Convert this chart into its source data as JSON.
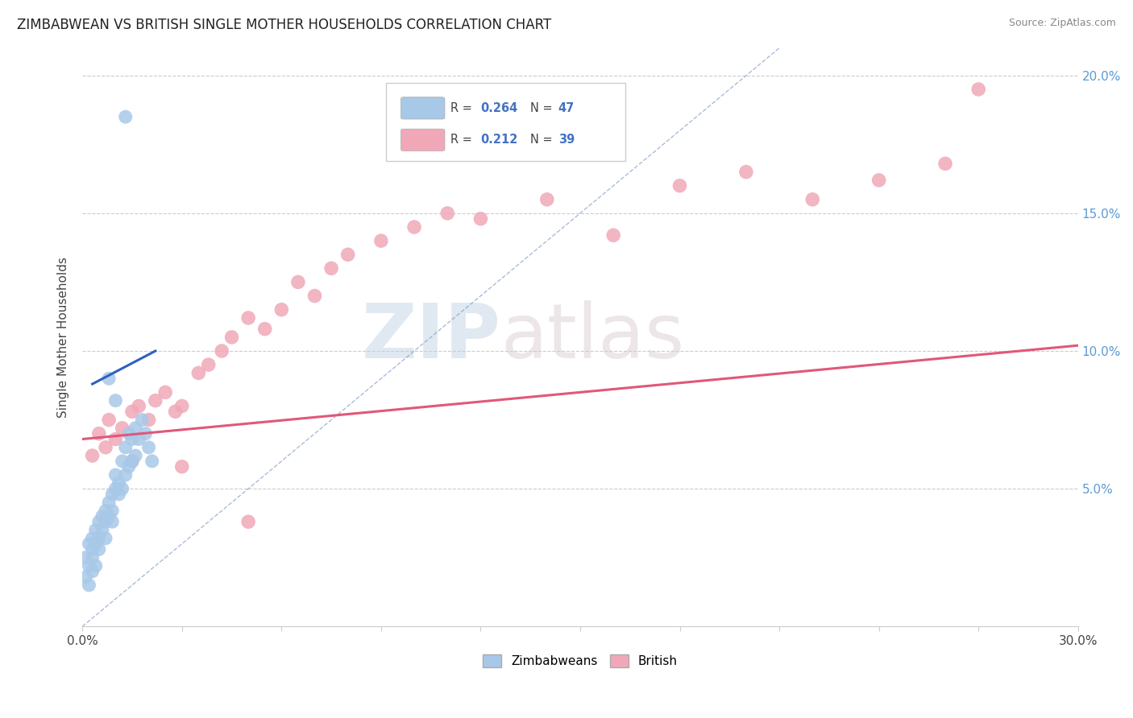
{
  "title": "ZIMBABWEAN VS BRITISH SINGLE MOTHER HOUSEHOLDS CORRELATION CHART",
  "source": "Source: ZipAtlas.com",
  "ylabel": "Single Mother Households",
  "xlim": [
    0.0,
    0.3
  ],
  "ylim": [
    0.0,
    0.21
  ],
  "xticks": [
    0.0,
    0.03,
    0.06,
    0.09,
    0.12,
    0.15,
    0.18,
    0.21,
    0.24,
    0.27,
    0.3
  ],
  "yticks": [
    0.0,
    0.05,
    0.1,
    0.15,
    0.2
  ],
  "zim_R": 0.264,
  "zim_N": 47,
  "brit_R": 0.212,
  "brit_N": 39,
  "zim_color": "#a8c8e8",
  "brit_color": "#f0a8b8",
  "zim_line_color": "#3060c0",
  "brit_line_color": "#e05878",
  "diag_color": "#7090c0",
  "watermark_zip": "ZIP",
  "watermark_atlas": "atlas",
  "background_color": "#ffffff",
  "zim_scatter_x": [
    0.001,
    0.002,
    0.002,
    0.003,
    0.003,
    0.003,
    0.004,
    0.004,
    0.005,
    0.005,
    0.005,
    0.006,
    0.006,
    0.007,
    0.007,
    0.007,
    0.008,
    0.008,
    0.009,
    0.009,
    0.009,
    0.01,
    0.01,
    0.011,
    0.011,
    0.012,
    0.012,
    0.013,
    0.013,
    0.014,
    0.014,
    0.015,
    0.015,
    0.016,
    0.016,
    0.017,
    0.018,
    0.019,
    0.02,
    0.021,
    0.001,
    0.002,
    0.003,
    0.004,
    0.008,
    0.01,
    0.013
  ],
  "zim_scatter_y": [
    0.025,
    0.022,
    0.03,
    0.028,
    0.025,
    0.032,
    0.03,
    0.035,
    0.028,
    0.032,
    0.038,
    0.035,
    0.04,
    0.032,
    0.038,
    0.042,
    0.04,
    0.045,
    0.038,
    0.042,
    0.048,
    0.05,
    0.055,
    0.048,
    0.052,
    0.05,
    0.06,
    0.055,
    0.065,
    0.058,
    0.07,
    0.06,
    0.068,
    0.062,
    0.072,
    0.068,
    0.075,
    0.07,
    0.065,
    0.06,
    0.018,
    0.015,
    0.02,
    0.022,
    0.09,
    0.082,
    0.185
  ],
  "brit_scatter_x": [
    0.003,
    0.005,
    0.007,
    0.008,
    0.01,
    0.012,
    0.015,
    0.017,
    0.02,
    0.022,
    0.025,
    0.028,
    0.03,
    0.035,
    0.038,
    0.042,
    0.045,
    0.05,
    0.055,
    0.06,
    0.065,
    0.07,
    0.075,
    0.08,
    0.09,
    0.1,
    0.11,
    0.12,
    0.14,
    0.16,
    0.18,
    0.2,
    0.22,
    0.24,
    0.26,
    0.27,
    0.015,
    0.03,
    0.05
  ],
  "brit_scatter_y": [
    0.062,
    0.07,
    0.065,
    0.075,
    0.068,
    0.072,
    0.078,
    0.08,
    0.075,
    0.082,
    0.085,
    0.078,
    0.08,
    0.092,
    0.095,
    0.1,
    0.105,
    0.112,
    0.108,
    0.115,
    0.125,
    0.12,
    0.13,
    0.135,
    0.14,
    0.145,
    0.15,
    0.148,
    0.155,
    0.142,
    0.16,
    0.165,
    0.155,
    0.162,
    0.168,
    0.195,
    0.06,
    0.058,
    0.038
  ],
  "brit_line_x": [
    0.0,
    0.3
  ],
  "brit_line_y": [
    0.068,
    0.102
  ],
  "zim_line_x": [
    0.003,
    0.022
  ],
  "zim_line_y": [
    0.088,
    0.1
  ]
}
